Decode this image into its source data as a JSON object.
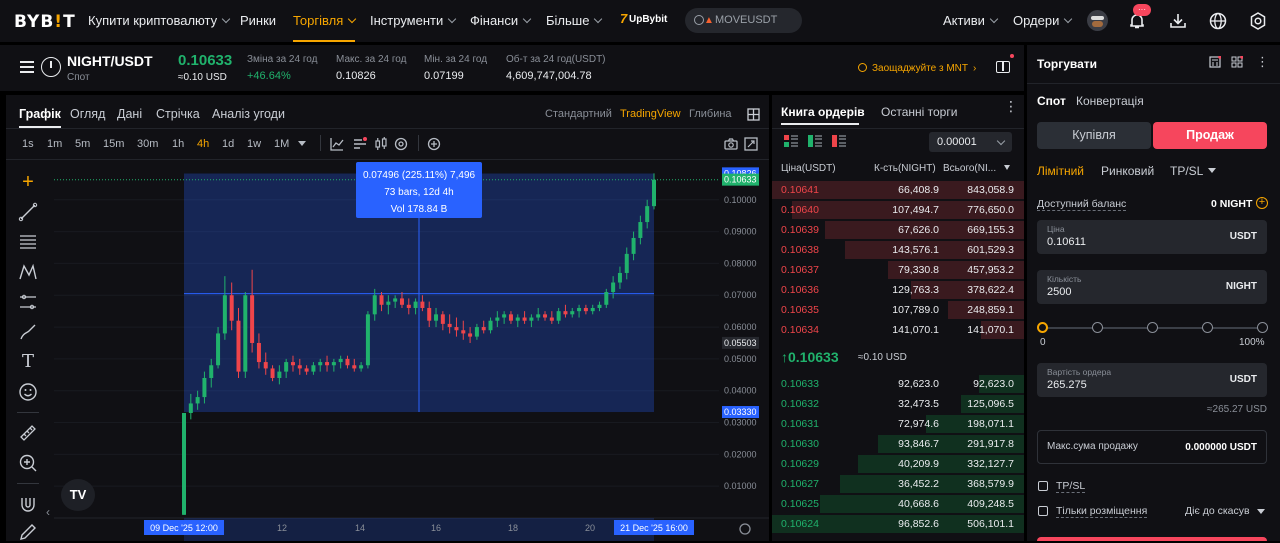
{
  "nav": {
    "logo": "BYB",
    "logo_i": "!",
    "logo_t": "T",
    "items": [
      {
        "label": "Купити криптовалюту",
        "chev": true
      },
      {
        "label": "Ринки",
        "chev": false
      },
      {
        "label": "Торгівля",
        "chev": true,
        "active": true
      },
      {
        "label": "Інструменти",
        "chev": true
      },
      {
        "label": "Фінанси",
        "chev": true
      },
      {
        "label": "Більше",
        "chev": true
      }
    ],
    "upbybit_num": "7",
    "upbybit": "UpBybit",
    "search_placeholder": "MOVEUSDT",
    "assets": "Активи",
    "orders": "Ордери",
    "notif_badge": "···"
  },
  "ticker": {
    "pair": "NIGHT/USDT",
    "market": "Спот",
    "price": "0.10633",
    "price_usd": "≈0.10 USD",
    "stats": [
      {
        "label": "Зміна за 24 год",
        "value": "+46.64%",
        "color": "#20b26c"
      },
      {
        "label": "Макс. за 24 год",
        "value": "0.10826",
        "color": "#eaecef"
      },
      {
        "label": "Мін. за 24 год",
        "value": "0.07199",
        "color": "#eaecef"
      },
      {
        "label": "Об-т за 24 год(USDT)",
        "value": "4,609,747,004.78",
        "color": "#eaecef"
      }
    ],
    "promo": "Заощаджуйте з MNT"
  },
  "chart_panel": {
    "tabs": [
      "Графік",
      "Огляд",
      "Дані",
      "Стрічка",
      "Аналіз угоди"
    ],
    "views": [
      "Стандартний",
      "TradingView",
      "Глибина"
    ],
    "timeframes": [
      "1s",
      "1m",
      "5m",
      "15m",
      "30m",
      "1h",
      "4h",
      "1d",
      "1w",
      "1M"
    ],
    "active_tf": "4h"
  },
  "chart_data": {
    "type": "candlestick",
    "title": "",
    "price_axis": {
      "ticks": [
        "0.10000",
        "0.09000",
        "0.08000",
        "0.07000",
        "0.06000",
        "0.05000",
        "0.04000",
        "0.03000",
        "0.02000",
        "0.01000"
      ],
      "ylim": [
        0.0,
        0.1125
      ],
      "label_current": "0.10826",
      "label_current2": "0.10633",
      "label_mid": "0.05503",
      "label_low": "0.03330"
    },
    "time_axis": {
      "ticks": [
        "12",
        "14",
        "16",
        "18",
        "20"
      ],
      "label_start": "09 Dec '25   12:00",
      "label_end": "21 Dec '25   16:00"
    },
    "measure": {
      "line1": "0.07496 (225.11%) 7,496",
      "line2": "73 bars, 12d 4h",
      "line3": "Vol 178.84 B",
      "price_from": 0.0333,
      "price_to": 0.10826
    },
    "candles": [
      [
        0.001,
        0.033,
        0.001,
        0.033
      ],
      [
        0.033,
        0.039,
        0.031,
        0.036
      ],
      [
        0.036,
        0.04,
        0.034,
        0.038
      ],
      [
        0.038,
        0.046,
        0.036,
        0.044
      ],
      [
        0.044,
        0.05,
        0.041,
        0.048
      ],
      [
        0.048,
        0.06,
        0.047,
        0.058
      ],
      [
        0.058,
        0.076,
        0.056,
        0.07
      ],
      [
        0.07,
        0.074,
        0.059,
        0.062
      ],
      [
        0.062,
        0.066,
        0.044,
        0.046
      ],
      [
        0.046,
        0.071,
        0.044,
        0.07
      ],
      [
        0.07,
        0.078,
        0.052,
        0.055
      ],
      [
        0.055,
        0.058,
        0.047,
        0.049
      ],
      [
        0.049,
        0.052,
        0.045,
        0.047
      ],
      [
        0.047,
        0.048,
        0.043,
        0.044
      ],
      [
        0.044,
        0.048,
        0.042,
        0.046
      ],
      [
        0.046,
        0.05,
        0.044,
        0.049
      ],
      [
        0.049,
        0.051,
        0.046,
        0.048
      ],
      [
        0.048,
        0.05,
        0.045,
        0.047
      ],
      [
        0.047,
        0.048,
        0.045,
        0.046
      ],
      [
        0.046,
        0.049,
        0.045,
        0.048
      ],
      [
        0.048,
        0.05,
        0.046,
        0.049
      ],
      [
        0.049,
        0.051,
        0.046,
        0.048
      ],
      [
        0.048,
        0.05,
        0.046,
        0.049
      ],
      [
        0.049,
        0.051,
        0.047,
        0.05
      ],
      [
        0.05,
        0.051,
        0.047,
        0.048
      ],
      [
        0.048,
        0.05,
        0.046,
        0.047
      ],
      [
        0.047,
        0.049,
        0.046,
        0.048
      ],
      [
        0.048,
        0.065,
        0.047,
        0.064
      ],
      [
        0.064,
        0.072,
        0.062,
        0.07
      ],
      [
        0.07,
        0.071,
        0.065,
        0.067
      ],
      [
        0.067,
        0.07,
        0.064,
        0.068
      ],
      [
        0.068,
        0.07,
        0.066,
        0.069
      ],
      [
        0.069,
        0.071,
        0.066,
        0.067
      ],
      [
        0.067,
        0.069,
        0.064,
        0.066
      ],
      [
        0.066,
        0.069,
        0.064,
        0.068
      ],
      [
        0.068,
        0.07,
        0.065,
        0.066
      ],
      [
        0.066,
        0.068,
        0.06,
        0.062
      ],
      [
        0.062,
        0.066,
        0.06,
        0.064
      ],
      [
        0.064,
        0.065,
        0.059,
        0.061
      ],
      [
        0.061,
        0.064,
        0.058,
        0.06
      ],
      [
        0.06,
        0.063,
        0.057,
        0.059
      ],
      [
        0.059,
        0.062,
        0.056,
        0.058
      ],
      [
        0.058,
        0.06,
        0.055,
        0.057
      ],
      [
        0.057,
        0.061,
        0.056,
        0.06
      ],
      [
        0.06,
        0.062,
        0.058,
        0.059
      ],
      [
        0.059,
        0.063,
        0.058,
        0.062
      ],
      [
        0.062,
        0.065,
        0.06,
        0.063
      ],
      [
        0.063,
        0.065,
        0.061,
        0.064
      ],
      [
        0.064,
        0.065,
        0.061,
        0.062
      ],
      [
        0.062,
        0.064,
        0.06,
        0.063
      ],
      [
        0.063,
        0.065,
        0.061,
        0.062
      ],
      [
        0.062,
        0.064,
        0.06,
        0.063
      ],
      [
        0.063,
        0.066,
        0.062,
        0.064
      ],
      [
        0.064,
        0.065,
        0.062,
        0.063
      ],
      [
        0.063,
        0.065,
        0.061,
        0.062
      ],
      [
        0.062,
        0.066,
        0.061,
        0.065
      ],
      [
        0.065,
        0.067,
        0.063,
        0.064
      ],
      [
        0.064,
        0.066,
        0.063,
        0.065
      ],
      [
        0.065,
        0.067,
        0.063,
        0.066
      ],
      [
        0.066,
        0.067,
        0.064,
        0.065
      ],
      [
        0.065,
        0.067,
        0.064,
        0.066
      ],
      [
        0.066,
        0.068,
        0.065,
        0.067
      ],
      [
        0.067,
        0.072,
        0.066,
        0.071
      ],
      [
        0.071,
        0.076,
        0.069,
        0.074
      ],
      [
        0.074,
        0.079,
        0.072,
        0.077
      ],
      [
        0.077,
        0.085,
        0.075,
        0.083
      ],
      [
        0.083,
        0.09,
        0.081,
        0.088
      ],
      [
        0.088,
        0.095,
        0.086,
        0.093
      ],
      [
        0.093,
        0.1,
        0.091,
        0.098
      ],
      [
        0.098,
        0.1083,
        0.097,
        0.1063
      ]
    ]
  },
  "orderbook": {
    "tabs": [
      "Книга ордерів",
      "Останні торги"
    ],
    "precision": "0.00001",
    "headers": [
      "Ціна(USDT)",
      "К-сть(NIGHT)",
      "Всього(NI..."
    ],
    "asks": [
      {
        "p": "0.10641",
        "q": "66,408.9",
        "t": "843,058.9",
        "fill": 1.0
      },
      {
        "p": "0.10640",
        "q": "107,494.7",
        "t": "776,650.0",
        "fill": 0.92
      },
      {
        "p": "0.10639",
        "q": "67,626.0",
        "t": "669,155.3",
        "fill": 0.79
      },
      {
        "p": "0.10638",
        "q": "143,576.1",
        "t": "601,529.3",
        "fill": 0.71
      },
      {
        "p": "0.10637",
        "q": "79,330.8",
        "t": "457,953.2",
        "fill": 0.54
      },
      {
        "p": "0.10636",
        "q": "129,763.3",
        "t": "378,622.4",
        "fill": 0.45
      },
      {
        "p": "0.10635",
        "q": "107,789.0",
        "t": "248,859.1",
        "fill": 0.3
      },
      {
        "p": "0.10634",
        "q": "141,070.1",
        "t": "141,070.1",
        "fill": 0.17
      }
    ],
    "last_price": "0.10633",
    "last_usd": "≈0.10 USD",
    "bids": [
      {
        "p": "0.10633",
        "q": "92,623.0",
        "t": "92,623.0",
        "fill": 0.18
      },
      {
        "p": "0.10632",
        "q": "32,473.5",
        "t": "125,096.5",
        "fill": 0.25
      },
      {
        "p": "0.10631",
        "q": "72,974.6",
        "t": "198,071.1",
        "fill": 0.39
      },
      {
        "p": "0.10630",
        "q": "93,846.7",
        "t": "291,917.8",
        "fill": 0.58
      },
      {
        "p": "0.10629",
        "q": "40,209.9",
        "t": "332,127.7",
        "fill": 0.66
      },
      {
        "p": "0.10627",
        "q": "36,452.2",
        "t": "368,579.9",
        "fill": 0.73
      },
      {
        "p": "0.10625",
        "q": "40,668.6",
        "t": "409,248.5",
        "fill": 0.81
      },
      {
        "p": "0.10624",
        "q": "96,852.6",
        "t": "506,101.1",
        "fill": 1.0
      }
    ]
  },
  "trade": {
    "title": "Торгувати",
    "tabs": [
      "Спот",
      "Конвертація"
    ],
    "buy": "Купівля",
    "sell": "Продаж",
    "order_types": [
      "Лімітний",
      "Ринковий",
      "TP/SL"
    ],
    "balance_label": "Доступний баланс",
    "balance_value": "0 NIGHT",
    "price_label": "Ціна",
    "price_value": "0.10611",
    "price_unit": "USDT",
    "qty_label": "Кількість",
    "qty_value": "2500",
    "qty_unit": "NIGHT",
    "slider_min": "0",
    "slider_max": "100%",
    "slider_level": 0,
    "value_label": "Вартість ордера",
    "value_value": "265.275",
    "value_unit": "USDT",
    "value_usd": "≈265.27 USD",
    "max_label": "Макс.сума продажу",
    "max_value": "0.000000 USDT",
    "tpsl": "TP/SL",
    "post_only": "Тільки розміщення",
    "tif": "Діє до скасув"
  },
  "colors": {
    "up": "#20b26c",
    "down": "#ef454a",
    "accent": "#f7a600",
    "sell": "#f6465d",
    "measure": "#2962ff"
  }
}
